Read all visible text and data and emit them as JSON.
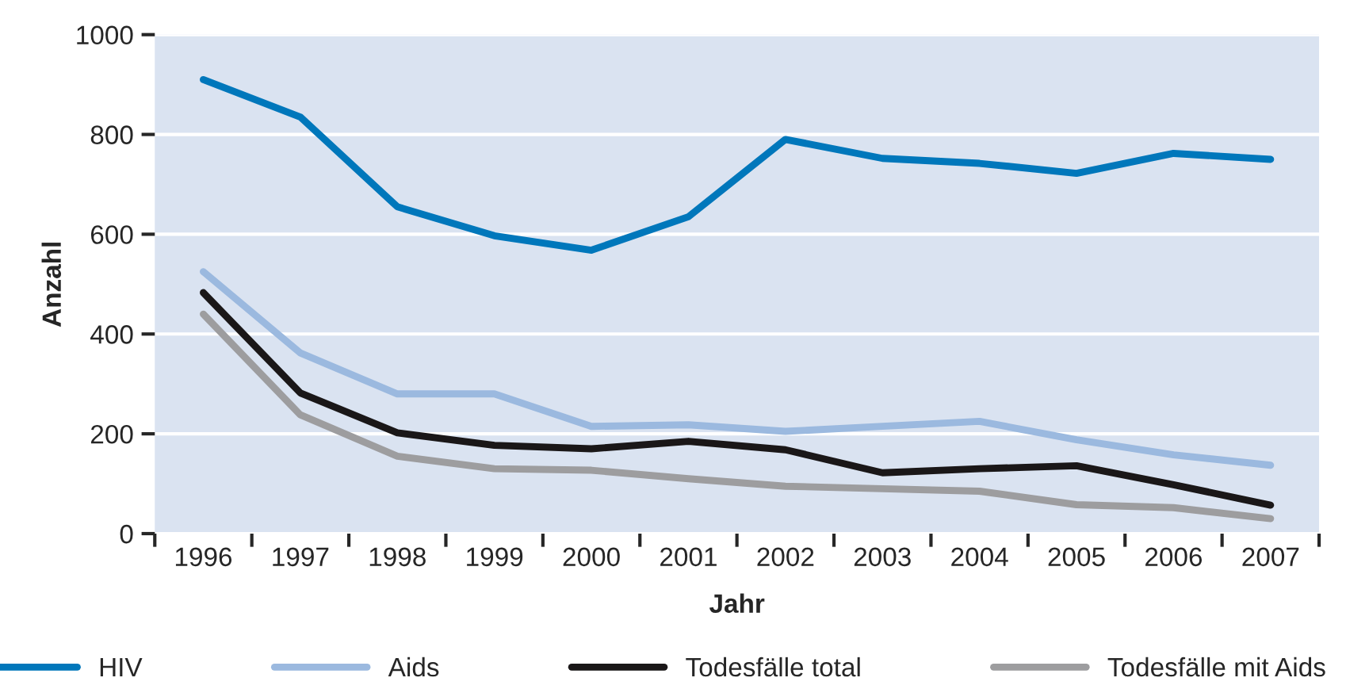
{
  "chart_data": {
    "type": "line",
    "xlabel": "Jahr",
    "ylabel": "Anzahl",
    "categories": [
      "1996",
      "1997",
      "1998",
      "1999",
      "2000",
      "2001",
      "2002",
      "2003",
      "2004",
      "2005",
      "2006",
      "2007"
    ],
    "series": [
      {
        "name": "HIV",
        "color": "#0077bb",
        "values": [
          910,
          835,
          655,
          597,
          568,
          635,
          790,
          752,
          742,
          722,
          762,
          750
        ]
      },
      {
        "name": "Aids",
        "color": "#9bb9df",
        "values": [
          525,
          362,
          280,
          280,
          215,
          218,
          205,
          215,
          225,
          188,
          158,
          137
        ]
      },
      {
        "name": "Todesfälle total",
        "color": "#1a1718",
        "values": [
          483,
          282,
          202,
          177,
          170,
          185,
          168,
          122,
          130,
          136,
          98,
          57
        ]
      },
      {
        "name": "Todesfälle mit Aids",
        "color": "#9d9d9f",
        "values": [
          440,
          238,
          155,
          130,
          127,
          110,
          95,
          90,
          85,
          58,
          52,
          30
        ]
      }
    ],
    "ylim": [
      0,
      1000
    ],
    "yticks": [
      0,
      200,
      400,
      600,
      800,
      1000
    ],
    "grid": "y",
    "legend": "bottom",
    "marker": "none",
    "line_style": "solid"
  }
}
